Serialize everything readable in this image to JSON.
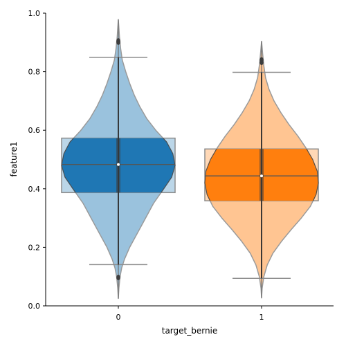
{
  "chart_data": {
    "type": "violin+box",
    "xlabel": "target_bernie",
    "ylabel": "feature1",
    "ylim": [
      0,
      1
    ],
    "yticks": [
      0.0,
      0.2,
      0.4,
      0.6,
      0.8,
      1.0
    ],
    "ytick_labels": [
      "0.0",
      "0.2",
      "0.4",
      "0.6",
      "0.8",
      "1.0"
    ],
    "grid": false,
    "groups": [
      {
        "category": "0",
        "color": "#1f77b4",
        "box": {
          "q1": 0.387,
          "median": 0.483,
          "q3": 0.573,
          "whisker_low": 0.141,
          "whisker_high": 0.849
        },
        "outliers": [
          0.097,
          0.901,
          0.905
        ],
        "mean": 0.483,
        "violin_range": [
          0.025,
          0.978
        ],
        "violin_profile": [
          [
            0.025,
            0.0
          ],
          [
            0.06,
            0.01
          ],
          [
            0.1,
            0.03
          ],
          [
            0.13,
            0.06
          ],
          [
            0.16,
            0.11
          ],
          [
            0.2,
            0.2
          ],
          [
            0.25,
            0.34
          ],
          [
            0.3,
            0.48
          ],
          [
            0.35,
            0.62
          ],
          [
            0.4,
            0.8
          ],
          [
            0.44,
            0.94
          ],
          [
            0.48,
            1.0
          ],
          [
            0.52,
            0.96
          ],
          [
            0.56,
            0.85
          ],
          [
            0.6,
            0.66
          ],
          [
            0.64,
            0.5
          ],
          [
            0.68,
            0.38
          ],
          [
            0.72,
            0.28
          ],
          [
            0.76,
            0.2
          ],
          [
            0.8,
            0.13
          ],
          [
            0.84,
            0.07
          ],
          [
            0.88,
            0.04
          ],
          [
            0.92,
            0.02
          ],
          [
            0.95,
            0.01
          ],
          [
            0.978,
            0.0
          ]
        ]
      },
      {
        "category": "1",
        "color": "#ff7f0e",
        "box": {
          "q1": 0.359,
          "median": 0.444,
          "q3": 0.536,
          "whisker_low": 0.094,
          "whisker_high": 0.798
        },
        "outliers": [
          0.832,
          0.84
        ],
        "mean": 0.444,
        "violin_range": [
          0.027,
          0.904
        ],
        "violin_profile": [
          [
            0.027,
            0.0
          ],
          [
            0.06,
            0.01
          ],
          [
            0.1,
            0.04
          ],
          [
            0.14,
            0.1
          ],
          [
            0.18,
            0.2
          ],
          [
            0.22,
            0.35
          ],
          [
            0.26,
            0.52
          ],
          [
            0.3,
            0.7
          ],
          [
            0.34,
            0.86
          ],
          [
            0.38,
            0.96
          ],
          [
            0.42,
            1.0
          ],
          [
            0.46,
            0.98
          ],
          [
            0.5,
            0.9
          ],
          [
            0.54,
            0.78
          ],
          [
            0.58,
            0.64
          ],
          [
            0.62,
            0.48
          ],
          [
            0.66,
            0.34
          ],
          [
            0.7,
            0.22
          ],
          [
            0.74,
            0.13
          ],
          [
            0.78,
            0.07
          ],
          [
            0.82,
            0.04
          ],
          [
            0.86,
            0.02
          ],
          [
            0.904,
            0.0
          ]
        ]
      }
    ]
  }
}
